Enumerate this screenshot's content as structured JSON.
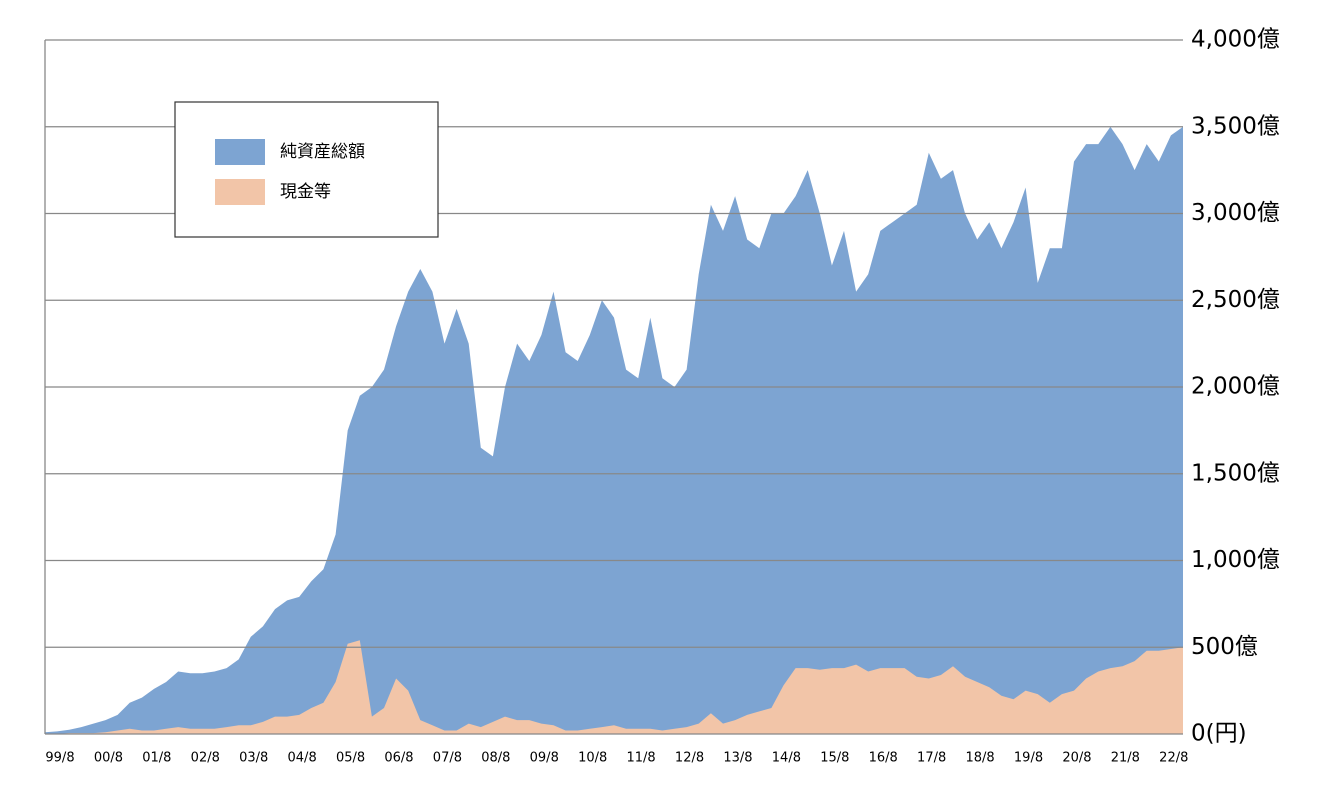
{
  "chart_data": {
    "type": "area",
    "categories": [
      "99/8",
      null,
      null,
      null,
      "00/8",
      null,
      null,
      null,
      "01/8",
      null,
      null,
      null,
      "02/8",
      null,
      null,
      null,
      "03/8",
      null,
      null,
      null,
      "04/8",
      null,
      null,
      null,
      "05/8",
      null,
      null,
      null,
      "06/8",
      null,
      null,
      null,
      "07/8",
      null,
      null,
      null,
      "08/8",
      null,
      null,
      null,
      "09/8",
      null,
      null,
      null,
      "10/8",
      null,
      null,
      null,
      "11/8",
      null,
      null,
      null,
      "12/8",
      null,
      null,
      null,
      "13/8",
      null,
      null,
      null,
      "14/8",
      null,
      null,
      null,
      "15/8",
      null,
      null,
      null,
      "16/8",
      null,
      null,
      null,
      "17/8",
      null,
      null,
      null,
      "18/8",
      null,
      null,
      null,
      "19/8",
      null,
      null,
      null,
      "20/8",
      null,
      null,
      null,
      "21/8",
      null,
      null,
      null,
      "22/8",
      null,
      null
    ],
    "series": [
      {
        "name": "純資産総額",
        "color": "#7da4d2",
        "values": [
          10,
          15,
          25,
          40,
          60,
          80,
          110,
          180,
          210,
          260,
          300,
          360,
          350,
          350,
          360,
          380,
          430,
          560,
          620,
          720,
          770,
          790,
          880,
          950,
          1150,
          1750,
          1950,
          2000,
          2100,
          2350,
          2550,
          2680,
          2550,
          2250,
          2450,
          2250,
          1650,
          1600,
          2000,
          2250,
          2150,
          2300,
          2550,
          2200,
          2150,
          2300,
          2500,
          2400,
          2100,
          2050,
          2400,
          2050,
          2000,
          2100,
          2650,
          3050,
          2900,
          3100,
          2850,
          2800,
          3000,
          3000,
          3100,
          3250,
          3000,
          2700,
          2900,
          2550,
          2650,
          2900,
          2950,
          3000,
          3050,
          3350,
          3200,
          3250,
          3000,
          2850,
          2950,
          2800,
          2950,
          3150,
          2600,
          2800,
          2800,
          3300,
          3400,
          3400,
          3500,
          3400,
          3250,
          3400,
          3300,
          3450,
          3500
        ]
      },
      {
        "name": "現金等",
        "color": "#f2c5a8",
        "values": [
          0,
          0,
          5,
          5,
          5,
          10,
          20,
          30,
          20,
          20,
          30,
          40,
          30,
          30,
          30,
          40,
          50,
          50,
          70,
          100,
          100,
          110,
          150,
          180,
          300,
          520,
          540,
          100,
          150,
          320,
          250,
          80,
          50,
          20,
          20,
          60,
          40,
          70,
          100,
          80,
          80,
          60,
          50,
          20,
          20,
          30,
          40,
          50,
          30,
          30,
          30,
          20,
          30,
          40,
          60,
          120,
          60,
          80,
          110,
          130,
          150,
          280,
          380,
          380,
          370,
          380,
          380,
          400,
          360,
          380,
          380,
          380,
          330,
          320,
          340,
          390,
          330,
          300,
          270,
          220,
          200,
          250,
          230,
          180,
          230,
          250,
          320,
          360,
          380,
          390,
          420,
          480,
          480,
          490,
          500
        ]
      }
    ],
    "ylim": [
      0,
      4000
    ],
    "yticks": [
      {
        "value": 0,
        "label": "0(円)"
      },
      {
        "value": 500,
        "label": "500億"
      },
      {
        "value": 1000,
        "label": "1,000億"
      },
      {
        "value": 1500,
        "label": "1,500億"
      },
      {
        "value": 2000,
        "label": "2,000億"
      },
      {
        "value": 2500,
        "label": "2,500億"
      },
      {
        "value": 3000,
        "label": "3,000億"
      },
      {
        "value": 3500,
        "label": "3,500億"
      },
      {
        "value": 4000,
        "label": "4,000億"
      }
    ],
    "grid": true,
    "legend": "upper left"
  }
}
